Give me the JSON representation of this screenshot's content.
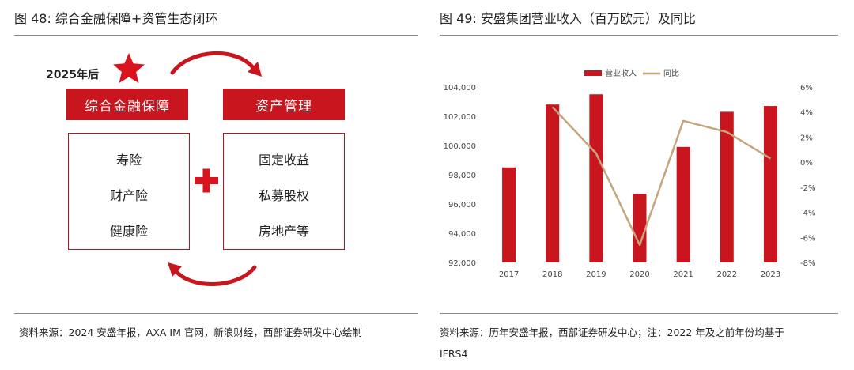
{
  "left_figure": {
    "title": "图 48:  综合金融保障+资管生态闭环",
    "year_label": "2025年后",
    "header_left": "综合金融保障",
    "header_right": "资产管理",
    "left_items": [
      "寿险",
      "财产险",
      "健康险"
    ],
    "right_items": [
      "固定收益",
      "私募股权",
      "房地产等"
    ],
    "source": "资料来源：2024 安盛年报，AXA IM 官网，新浪财经，西部证券研发中心绘制",
    "accent_color": "#c9151e"
  },
  "right_figure": {
    "title": "图 49:  安盛集团营业收入（百万欧元）及同比",
    "source_line1": "资料来源：历年安盛年报，西部证券研发中心；注：2022  年及之前年份均基于",
    "source_line2": "IFRS4"
  },
  "chart_data": {
    "type": "bar",
    "categories": [
      "2017",
      "2018",
      "2019",
      "2020",
      "2021",
      "2022",
      "2023"
    ],
    "series": [
      {
        "name": "营业收入",
        "kind": "bar",
        "axis": "left",
        "color": "#c9151e",
        "values": [
          98500,
          102800,
          103500,
          96700,
          99900,
          102300,
          102700
        ]
      },
      {
        "name": "同比",
        "kind": "line",
        "axis": "right",
        "color": "#c4a57c",
        "values": [
          null,
          4.4,
          0.7,
          -6.6,
          3.3,
          2.4,
          0.3
        ]
      }
    ],
    "ylim_left": [
      92000,
      104000
    ],
    "yticks_left": [
      "92,000",
      "94,000",
      "96,000",
      "98,000",
      "100,000",
      "102,000",
      "104,000"
    ],
    "ylim_right": [
      -8,
      6
    ],
    "yticks_right": [
      "-8%",
      "-6%",
      "-4%",
      "-2%",
      "0%",
      "2%",
      "4%",
      "6%"
    ],
    "legend_position": "top-center",
    "grid": false
  }
}
